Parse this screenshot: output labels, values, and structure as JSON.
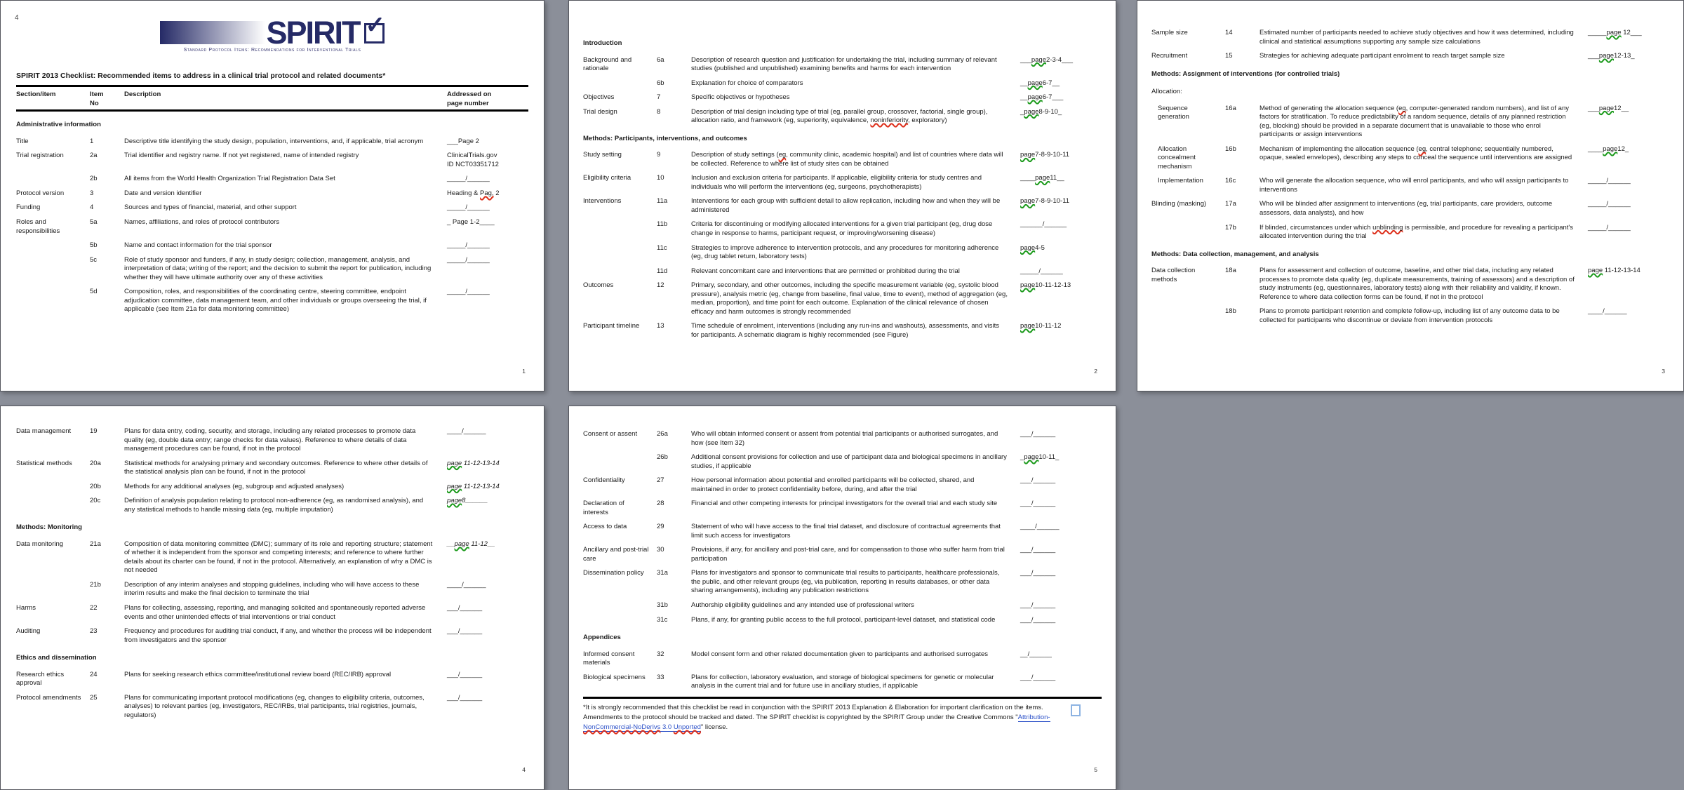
{
  "document": {
    "page1_marker": "4",
    "logo": {
      "word": "SPIRIT",
      "checkbox_icon": "checkmark",
      "tagline": "Standard Protocol Items: Recommendations for Interventional Trials"
    },
    "checklist_title": "SPIRIT 2013 Checklist: Recommended items to address in a clinical trial protocol and related documents*",
    "table_headers": {
      "section": "Section/item",
      "item": "Item\nNo",
      "description": "Description",
      "addressed": "Addressed on\npage number"
    },
    "colors": {
      "logo_navy": "#252a66",
      "link_blue": "#2b50c8",
      "spellcheck_red": "#dd2f1b",
      "grammar_green": "#1c9a1c",
      "canvas_gray": "#8b8f99"
    },
    "pages": [
      {
        "number": "1",
        "rows": [
          {
            "heading": "Administrative information"
          },
          {
            "section": "Title",
            "item": "1",
            "desc": "Descriptive title identifying the study design, population, interventions, and, if applicable, trial acronym",
            "addr": "___Page 2"
          },
          {
            "section": "Trial registration",
            "item": "2a",
            "desc": "Trial identifier and registry name. If not yet registered, name of intended registry",
            "addr": "ClinicalTrials.gov\nID NCT03351712"
          },
          {
            "section": "",
            "item": "2b",
            "desc": "All items from the World Health Organization Trial Registration Data Set",
            "addr": "_____/______"
          },
          {
            "section": "Protocol version",
            "item": "3",
            "desc": "Date and version identifier",
            "addr": "Heading & {r|Pag,} 2"
          },
          {
            "section": "Funding",
            "item": "4",
            "desc": "Sources and types of financial, material, and other support",
            "addr": "_____/______"
          },
          {
            "section": "Roles and responsibilities",
            "item": "5a",
            "desc": "Names, affiliations, and roles of protocol contributors",
            "addr": "_ Page 1-2____"
          },
          {
            "section": "",
            "item": "5b",
            "desc": "Name and contact information for the trial sponsor",
            "addr": "_____/______"
          },
          {
            "section": "",
            "item": "5c",
            "desc": "Role of study sponsor and funders, if any, in study design; collection, management, analysis, and interpretation of data; writing of the report; and the decision to submit the report for publication, including whether they will have ultimate authority over any of these activities",
            "addr": "_____/______"
          },
          {
            "section": "",
            "item": "5d",
            "desc": "Composition, roles, and responsibilities of the coordinating centre, steering committee, endpoint adjudication committee, data management team, and other individuals or groups overseeing the trial, if applicable (see Item 21a for data monitoring committee)",
            "addr": "_____/______"
          }
        ]
      },
      {
        "number": "2",
        "rows": [
          {
            "heading": "Introduction"
          },
          {
            "section": "Background and rationale",
            "item": "6a",
            "desc": "Description of research question and justification for undertaking the trial, including summary of relevant studies (published and unpublished) examining benefits and harms for each intervention",
            "addr": "___{g|page}2-3-4___"
          },
          {
            "section": "",
            "item": "6b",
            "desc": "Explanation for choice of comparators",
            "addr": "__{g|page}6-7__"
          },
          {
            "section": "Objectives",
            "item": "7",
            "desc": "Specific objectives or hypotheses",
            "addr": "__{g|page}6-7___"
          },
          {
            "section": "Trial design",
            "item": "8",
            "desc": "Description of trial design including type of trial (eg, parallel group, crossover, factorial, single group), allocation ratio, and framework (eg, superiority, equivalence, {r|noninferiority}, exploratory)",
            "addr": "_{g|page}8-9-10_"
          },
          {
            "heading": "Methods: Participants, interventions, and outcomes"
          },
          {
            "section": "Study setting",
            "item": "9",
            "desc": "Description of study settings ({r|eg}, community clinic, academic hospital) and list of countries where data will be collected. Reference to where list of study sites can be obtained",
            "addr": "{g|page}7-8-9-10-11"
          },
          {
            "section": "Eligibility criteria",
            "item": "10",
            "desc": "Inclusion and exclusion criteria for participants. If applicable, eligibility criteria for study centres and individuals who will perform the interventions (eg, surgeons, psychotherapists)",
            "addr": "____{g|page}11__"
          },
          {
            "section": "Interventions",
            "item": "11a",
            "desc": "Interventions for each group with sufficient detail to allow replication, including how and when they will be administered",
            "addr": "{g|page}7-8-9-10-11"
          },
          {
            "section": "",
            "item": "11b",
            "desc": "Criteria for discontinuing or modifying allocated interventions for a given trial participant (eg, drug dose change in response to harms, participant request, or improving/worsening disease)",
            "addr": "______/______"
          },
          {
            "section": "",
            "item": "11c",
            "desc": "Strategies to improve adherence to intervention protocols, and any procedures for monitoring adherence (eg, drug tablet return, laboratory tests)",
            "addr": "{g|page}4-5"
          },
          {
            "section": "",
            "item": "11d",
            "desc": "Relevant concomitant care and interventions that are permitted or prohibited during the trial",
            "addr": "_____/______"
          },
          {
            "section": "Outcomes",
            "item": "12",
            "desc": "Primary, secondary, and other outcomes, including the specific measurement variable (eg, systolic blood pressure), analysis metric (eg, change from baseline, final value, time to event), method of aggregation (eg, median, proportion), and time point for each outcome. Explanation of the clinical relevance of chosen efficacy and harm outcomes is strongly recommended",
            "addr": "{g|page}10-11-12-13"
          },
          {
            "section": "Participant timeline",
            "item": "13",
            "desc": "Time schedule of enrolment, interventions (including any run-ins and washouts), assessments, and visits for participants. A schematic diagram is highly recommended (see Figure)",
            "addr": "{g|page}10-11-12"
          }
        ]
      },
      {
        "number": "3",
        "rows": [
          {
            "section": "Sample size",
            "item": "14",
            "desc": "Estimated number of participants needed to achieve study objectives and how it was determined, including clinical and statistical assumptions supporting any sample size calculations",
            "addr": "_____{g|page} 12___"
          },
          {
            "section": "Recruitment",
            "item": "15",
            "desc": "Strategies for achieving adequate participant enrolment to reach target sample size",
            "addr": "___{g|page}12-13_"
          },
          {
            "heading": "Methods: Assignment of interventions (for controlled trials)"
          },
          {
            "heading": "Allocation:",
            "plain": true
          },
          {
            "section": "Sequence generation",
            "indent": true,
            "item": "16a",
            "desc": "Method of generating the allocation sequence ({r|eg}, computer-generated random numbers), and list of any factors for stratification. To reduce predictability of a random sequence, details of any planned restriction (eg, blocking) should be provided in a separate document that is unavailable to those who enrol participants or assign interventions",
            "addr": "___{g|page}12__"
          },
          {
            "section": "Allocation concealment mechanism",
            "indent": true,
            "item": "16b",
            "desc": "Mechanism of implementing the allocation sequence ({r|eg}, central telephone; sequentially numbered, opaque, sealed envelopes), describing any steps to conceal the sequence until interventions are assigned",
            "addr": "____{g|page}12_"
          },
          {
            "section": "Implementation",
            "indent": true,
            "item": "16c",
            "desc": "Who will generate the allocation sequence, who will enrol participants, and who will assign participants to interventions",
            "addr": "_____/______"
          },
          {
            "section": "Blinding (masking)",
            "item": "17a",
            "desc": "Who will be blinded after assignment to interventions (eg, trial participants, care providers, outcome assessors, data analysts), and how",
            "addr": "_____/______"
          },
          {
            "section": "",
            "item": "17b",
            "desc": "If blinded, circumstances under which {r|unblinding} is permissible, and procedure for revealing a participant's allocated intervention during the trial",
            "addr": "_____/______"
          },
          {
            "heading": "Methods: Data collection, management, and analysis"
          },
          {
            "section": "Data collection methods",
            "item": "18a",
            "desc": "Plans for assessment and collection of outcome, baseline, and other trial data, including any related processes to promote data quality (eg, duplicate measurements, training of assessors) and a description of study instruments (eg, questionnaires, laboratory tests) along with their reliability and validity, if known. Reference to where data collection forms can be found, if not in the protocol",
            "addr": "{g|page} 11-12-13-14"
          },
          {
            "section": "",
            "item": "18b",
            "desc": "Plans to promote participant retention and complete follow-up, including list of any outcome data to be collected for participants who discontinue or deviate from intervention protocols",
            "addr": "____/______"
          }
        ]
      },
      {
        "number": "4",
        "rows": [
          {
            "section": "Data management",
            "item": "19",
            "desc": "Plans for data entry, coding, security, and storage, including any related processes to promote data quality (eg, double data entry; range checks for data values). Reference to where details of data management procedures can be found, if not in the protocol",
            "addr": "____/______"
          },
          {
            "section": "Statistical methods",
            "item": "20a",
            "desc": "Statistical methods for analysing primary and secondary outcomes. Reference to where other details of the statistical analysis plan can be found, if not in the protocol",
            "addr": "{g|page} 11-12-13-14",
            "ital": true
          },
          {
            "section": "",
            "item": "20b",
            "desc": "Methods for any additional analyses (eg, subgroup and adjusted analyses)",
            "addr": "{g|page} 11-12-13-14",
            "ital": true
          },
          {
            "section": "",
            "item": "20c",
            "desc": "Definition of analysis population relating to protocol non-adherence (eg, as randomised analysis), and any statistical methods to handle missing data (eg, multiple imputation)",
            "addr": "{g|page}8______",
            "ital": true
          },
          {
            "heading": "Methods: Monitoring"
          },
          {
            "section": "Data monitoring",
            "item": "21a",
            "desc": "Composition of data monitoring committee (DMC); summary of its role and reporting structure; statement of whether it is independent from the sponsor and competing interests; and reference to where further details about its charter can be found, if not in the protocol. Alternatively, an explanation of why a DMC is not needed",
            "addr": "__{g|page} 11-12__",
            "ital": true
          },
          {
            "section": "",
            "item": "21b",
            "desc": "Description of any interim analyses and stopping guidelines, including who will have access to these interim results and make the final decision to terminate the trial",
            "addr": "____/______"
          },
          {
            "section": "Harms",
            "item": "22",
            "desc": "Plans for collecting, assessing, reporting, and managing solicited and spontaneously reported adverse events and other unintended effects of trial interventions or trial conduct",
            "addr": "___/______"
          },
          {
            "section": "Auditing",
            "item": "23",
            "desc": "Frequency and procedures for auditing trial conduct, if any, and whether the process will be independent from investigators and the sponsor",
            "addr": "___/______"
          },
          {
            "heading": "Ethics and dissemination"
          },
          {
            "section": "Research ethics approval",
            "item": "24",
            "desc": "Plans for seeking research ethics committee/institutional review board (REC/IRB) approval",
            "addr": "___/______"
          },
          {
            "section": "Protocol amendments",
            "item": "25",
            "desc": "Plans for communicating important protocol modifications (eg, changes to eligibility criteria, outcomes, analyses) to relevant parties (eg, investigators, REC/IRBs, trial participants, trial registries, journals, regulators)",
            "addr": "___/______"
          }
        ]
      },
      {
        "number": "5",
        "rows": [
          {
            "section": "Consent or assent",
            "item": "26a",
            "desc": "Who will obtain informed consent or assent from potential trial participants or authorised surrogates, and how (see Item 32)",
            "addr": "___/______"
          },
          {
            "section": "",
            "item": "26b",
            "desc": "Additional consent provisions for collection and use of participant data and biological specimens in ancillary studies, if applicable",
            "addr": "_{g|page}10-11_"
          },
          {
            "section": "Confidentiality",
            "item": "27",
            "desc": "How personal information about potential and enrolled participants will be collected, shared, and maintained in order to protect confidentiality before, during, and after the trial",
            "addr": "___/______"
          },
          {
            "section": "Declaration of interests",
            "item": "28",
            "desc": "Financial and other competing interests for principal investigators for the overall trial and each study site",
            "addr": "___/______"
          },
          {
            "section": "Access to data",
            "item": "29",
            "desc": "Statement of who will have access to the final trial dataset, and disclosure of contractual agreements that limit such access for investigators",
            "addr": "____/______"
          },
          {
            "section": "Ancillary and post-trial care",
            "item": "30",
            "desc": "Provisions, if any, for ancillary and post-trial care, and for compensation to those who suffer harm from trial participation",
            "addr": "___/______"
          },
          {
            "section": "Dissemination policy",
            "item": "31a",
            "desc": "Plans for investigators and sponsor to communicate trial results to participants, healthcare professionals, the public, and other relevant groups (eg, via publication, reporting in results databases, or other data sharing arrangements), including any publication restrictions",
            "addr": "___/______"
          },
          {
            "section": "",
            "item": "31b",
            "desc": "Authorship eligibility guidelines and any intended use of professional writers",
            "addr": "___/______"
          },
          {
            "section": "",
            "item": "31c",
            "desc": "Plans, if any, for granting public access to the full protocol, participant-level dataset, and statistical code",
            "addr": "___/______"
          },
          {
            "heading": "Appendices"
          },
          {
            "section": "Informed consent materials",
            "item": "32",
            "desc": "Model consent form and other related documentation given to participants and authorised surrogates",
            "addr": "__/______"
          },
          {
            "section": "Biological specimens",
            "item": "33",
            "desc": "Plans for collection, laboratory evaluation, and storage of biological specimens for genetic or molecular analysis in the current trial and for future use in ancillary studies, if applicable",
            "addr": "___/______"
          }
        ]
      }
    ],
    "footnote": "*It is strongly recommended that this checklist be read in conjunction with the SPIRIT 2013 Explanation & Elaboration for important clarification on the items. Amendments to the protocol should be tracked and dated. The SPIRIT checklist is copyrighted by the SPIRIT Group under the Creative Commons \"{a|Attribution-}{ar|NonCommercial-NoDerivs}{a| 3.0 }{ar|Unported}\" license."
  }
}
